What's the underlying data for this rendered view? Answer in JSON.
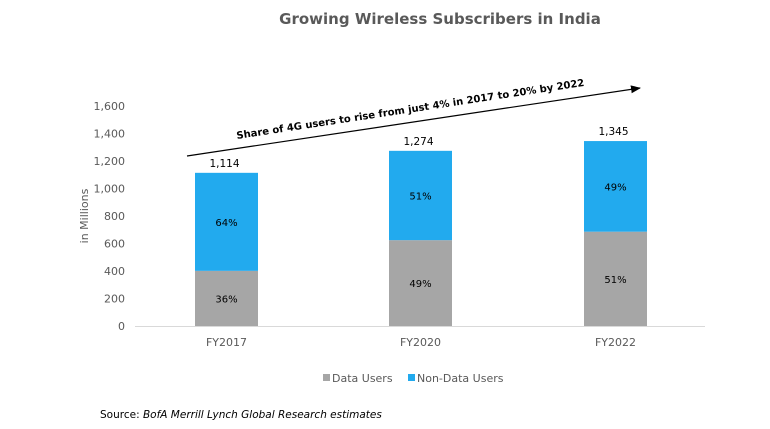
{
  "chart_data": {
    "type": "bar",
    "stacked": true,
    "title": "Growing Wireless Subscribers in India",
    "xlabel": "",
    "ylabel": "in Millions",
    "ylim": [
      0,
      1600
    ],
    "yticks": [
      0,
      200,
      400,
      600,
      800,
      1000,
      1200,
      1400,
      1600
    ],
    "ytick_labels": [
      "0",
      "200",
      "400",
      "600",
      "800",
      "1,000",
      "1,200",
      "1,400",
      "1,600"
    ],
    "grid": false,
    "categories": [
      "FY2017",
      "FY2020",
      "FY2022"
    ],
    "totals": [
      1114,
      1274,
      1345
    ],
    "total_labels": [
      "1,114",
      "1,274",
      "1,345"
    ],
    "series": [
      {
        "name": "Data Users",
        "color": "#a6a6a6",
        "share_pct": [
          36,
          49,
          51
        ],
        "labels": [
          "36%",
          "49%",
          "51%"
        ]
      },
      {
        "name": "Non-Data Users",
        "color": "#22aaee",
        "share_pct": [
          64,
          51,
          49
        ],
        "labels": [
          "64%",
          "51%",
          "49%"
        ]
      }
    ],
    "legend_position": "bottom",
    "annotation": "Share of 4G users to rise  from just 4% in 2017 to 20% by 2022"
  },
  "source": {
    "prefix": "Source: ",
    "text": "BofA Merrill Lynch Global Research estimates"
  }
}
